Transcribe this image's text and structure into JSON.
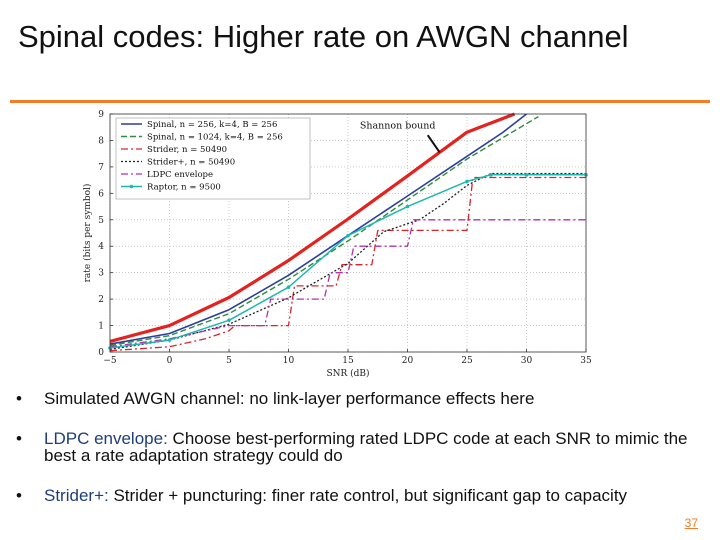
{
  "slide": {
    "title": "Spinal codes: Higher rate on AWGN channel",
    "page_number": "37",
    "accent_color": "#f07e26"
  },
  "bullets": [
    {
      "term": "",
      "text": "Simulated AWGN channel: no link-layer performance effects here"
    },
    {
      "term": "LDPC envelope:",
      "text": " Choose best-performing rated LDPC code at each SNR to mimic the best a rate adaptation strategy could do"
    },
    {
      "term": "Strider+:",
      "text": " Strider + puncturing: finer rate control, but significant gap to capacity"
    }
  ],
  "chart_data": {
    "type": "line",
    "xlabel": "SNR (dB)",
    "ylabel": "rate (bits per symbol)",
    "xlim": [
      -5,
      35
    ],
    "ylim": [
      0,
      9
    ],
    "xticks": [
      -5,
      0,
      5,
      10,
      15,
      20,
      25,
      30,
      35
    ],
    "yticks": [
      0,
      1,
      2,
      3,
      4,
      5,
      6,
      7,
      8,
      9
    ],
    "annotation": "Shannon bound",
    "series": [
      {
        "name": "Shannon bound",
        "legend": false,
        "color": "#e3231f",
        "style": "solid",
        "width": 3.2,
        "x": [
          -5,
          0,
          5,
          10,
          15,
          20,
          25,
          29
        ],
        "y": [
          0.4,
          1.0,
          2.06,
          3.46,
          5.03,
          6.66,
          8.31,
          9.0
        ]
      },
      {
        "name": "Spinal, n = 256, k=4, B = 256",
        "legend": true,
        "color": "#2b3f9e",
        "style": "solid",
        "width": 1.6,
        "x": [
          -5,
          0,
          5,
          10,
          15,
          20,
          25,
          28,
          30
        ],
        "y": [
          0.3,
          0.7,
          1.6,
          2.9,
          4.4,
          5.9,
          7.4,
          8.3,
          9.0
        ]
      },
      {
        "name": "Spinal, n = 1024, k=4, B = 256",
        "legend": true,
        "color": "#2e8b3e",
        "style": "dashed",
        "width": 1.4,
        "x": [
          -5,
          0,
          5,
          10,
          15,
          20,
          25,
          28,
          31
        ],
        "y": [
          0.25,
          0.62,
          1.45,
          2.75,
          4.2,
          5.75,
          7.3,
          8.1,
          8.9
        ]
      },
      {
        "name": "Strider, n = 50490",
        "legend": true,
        "color": "#d6262c",
        "style": "dashdot",
        "width": 1.3,
        "x": [
          -5,
          0,
          3,
          5,
          5.5,
          10,
          10.5,
          14,
          14.5,
          17,
          17.5,
          25,
          25.5,
          35
        ],
        "y": [
          0.05,
          0.2,
          0.5,
          0.8,
          1.0,
          1.0,
          2.5,
          2.5,
          3.3,
          3.3,
          4.6,
          4.6,
          6.6,
          6.6
        ]
      },
      {
        "name": "Strider+, n = 50490",
        "legend": true,
        "color": "#222222",
        "style": "dotted",
        "width": 1.3,
        "x": [
          -5,
          0,
          5,
          10,
          15,
          18,
          21,
          23,
          25,
          27,
          35
        ],
        "y": [
          0.1,
          0.45,
          1.05,
          2.05,
          3.35,
          4.55,
          5.0,
          5.6,
          6.3,
          6.75,
          6.75
        ]
      },
      {
        "name": "LDPC envelope",
        "legend": true,
        "color": "#b030b0",
        "style": "dashdot",
        "width": 1.3,
        "x": [
          -5,
          0,
          5,
          8,
          8.5,
          13,
          13.5,
          15,
          15.5,
          20,
          20.5,
          25,
          25.5,
          35
        ],
        "y": [
          0.2,
          0.5,
          1.0,
          1.0,
          2.0,
          2.0,
          3.0,
          3.0,
          4.0,
          4.0,
          5.0,
          5.0,
          5.0,
          5.0
        ]
      },
      {
        "name": "Raptor, n = 9500",
        "legend": true,
        "color": "#1fb8b0",
        "style": "solid",
        "width": 1.5,
        "markers": true,
        "x": [
          -5,
          0,
          5,
          10,
          15,
          20,
          25,
          27,
          30,
          35
        ],
        "y": [
          0.15,
          0.45,
          1.2,
          2.45,
          4.4,
          5.5,
          6.45,
          6.7,
          6.7,
          6.7
        ]
      }
    ]
  }
}
